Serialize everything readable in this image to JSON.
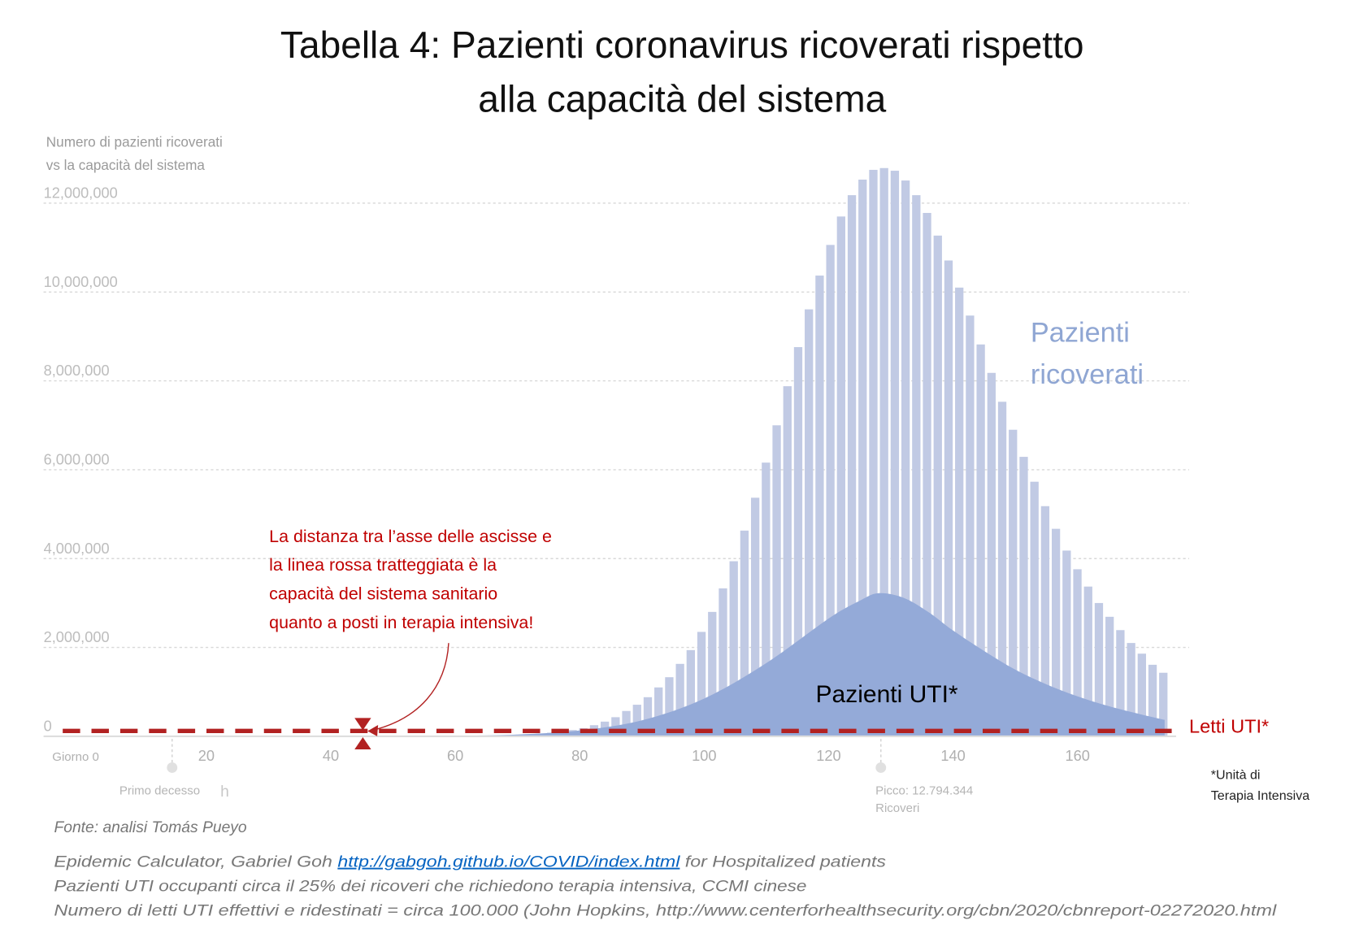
{
  "chart_data": {
    "type": "bar",
    "title_line1": "Tabella 4: Pazienti coronavirus ricoverati rispetto",
    "title_line2": "alla capacità del sistema",
    "ylabel_line1": "Numero di pazienti ricoverati",
    "ylabel_line2": "vs la capacità del sistema",
    "ylim": [
      0,
      12500000
    ],
    "xlim": [
      0,
      175
    ],
    "grid": true,
    "y_ticks": [
      {
        "value": 0,
        "label": "0"
      },
      {
        "value": 2000000,
        "label": "2,000,000"
      },
      {
        "value": 4000000,
        "label": "4,000,000"
      },
      {
        "value": 6000000,
        "label": "6,000,000"
      },
      {
        "value": 8000000,
        "label": "8,000,000"
      },
      {
        "value": 10000000,
        "label": "10,000,000"
      },
      {
        "value": 12000000,
        "label": "12,000,000"
      }
    ],
    "x_ticks": [
      {
        "value": 0,
        "label": "Giorno 0"
      },
      {
        "value": 20,
        "label": "20"
      },
      {
        "value": 40,
        "label": "40"
      },
      {
        "value": 60,
        "label": "60"
      },
      {
        "value": 80,
        "label": "80"
      },
      {
        "value": 100,
        "label": "100"
      },
      {
        "value": 120,
        "label": "120"
      },
      {
        "value": 140,
        "label": "140"
      },
      {
        "value": 160,
        "label": "160"
      }
    ],
    "hospitalized_series": {
      "name": "Pazienti ricoverati",
      "label_line1": "Pazienti",
      "label_line2": "ricoverati",
      "color": "#c1cae4",
      "day_start": 61.6,
      "day_step": 1.726,
      "values_millions": [
        0.008,
        0.01,
        0.015,
        0.02,
        0.025,
        0.035,
        0.045,
        0.06,
        0.08,
        0.1,
        0.14,
        0.18,
        0.25,
        0.33,
        0.43,
        0.57,
        0.71,
        0.88,
        1.1,
        1.33,
        1.63,
        1.94,
        2.35,
        2.8,
        3.33,
        3.94,
        4.63,
        5.37,
        6.16,
        7.0,
        7.88,
        8.76,
        9.61,
        10.37,
        11.06,
        11.7,
        12.18,
        12.53,
        12.75,
        12.79,
        12.73,
        12.51,
        12.18,
        11.78,
        11.27,
        10.71,
        10.1,
        9.47,
        8.82,
        8.18,
        7.53,
        6.9,
        6.29,
        5.73,
        5.18,
        4.67,
        4.18,
        3.76,
        3.37,
        3.0,
        2.69,
        2.39,
        2.1,
        1.86,
        1.61,
        1.43
      ]
    },
    "icu_series": {
      "name": "Pazienti UTI*",
      "color": "#94aad8",
      "points": [
        [
          55,
          0
        ],
        [
          60,
          0.01
        ],
        [
          70,
          0.04
        ],
        [
          80,
          0.13
        ],
        [
          90,
          0.36
        ],
        [
          100,
          0.85
        ],
        [
          110,
          1.65
        ],
        [
          120,
          2.65
        ],
        [
          125,
          3.05
        ],
        [
          128,
          3.22
        ],
        [
          132,
          3.12
        ],
        [
          136,
          2.8
        ],
        [
          140,
          2.38
        ],
        [
          145,
          1.92
        ],
        [
          150,
          1.5
        ],
        [
          155,
          1.17
        ],
        [
          160,
          0.9
        ],
        [
          165,
          0.68
        ],
        [
          170,
          0.5
        ],
        [
          174,
          0.37
        ]
      ]
    },
    "capacity_line": {
      "name": "Letti UTI*",
      "value": 100000,
      "color": "#b22222"
    },
    "markers": [
      {
        "day": 14.5,
        "label": "Primo decesso",
        "extra": "h"
      },
      {
        "day": 128.4,
        "label_line1": "Picco: 12.794.344",
        "label_line2": "Ricoveri"
      }
    ],
    "annotation": {
      "lines": [
        "La distanza tra l’asse delle ascisse e",
        "la linea rossa tratteggiata è la",
        "capacità del sistema sanitario",
        "quanto a posti in terapia intensiva!"
      ]
    },
    "footnote_icu": {
      "line1": "*Unità di",
      "line2": "Terapia Intensiva"
    }
  },
  "footer": {
    "source": "Fonte: analisi Tomás Pueyo",
    "line1_prefix": "Epidemic Calculator, Gabriel Goh ",
    "line1_link": "http://gabgoh.github.io/COVID/index.html",
    "line1_suffix": " for Hospitalized patients",
    "line2": "Pazienti UTI occupanti circa il 25% dei ricoveri che richiedono terapia intensiva, CCMI cinese",
    "line3": "Numero di letti UTI effettivi e ridestinati = circa 100.000 (John Hopkins, http://www.centerforhealthsecurity.org/cbn/2020/cbnreport-02272020.html"
  }
}
